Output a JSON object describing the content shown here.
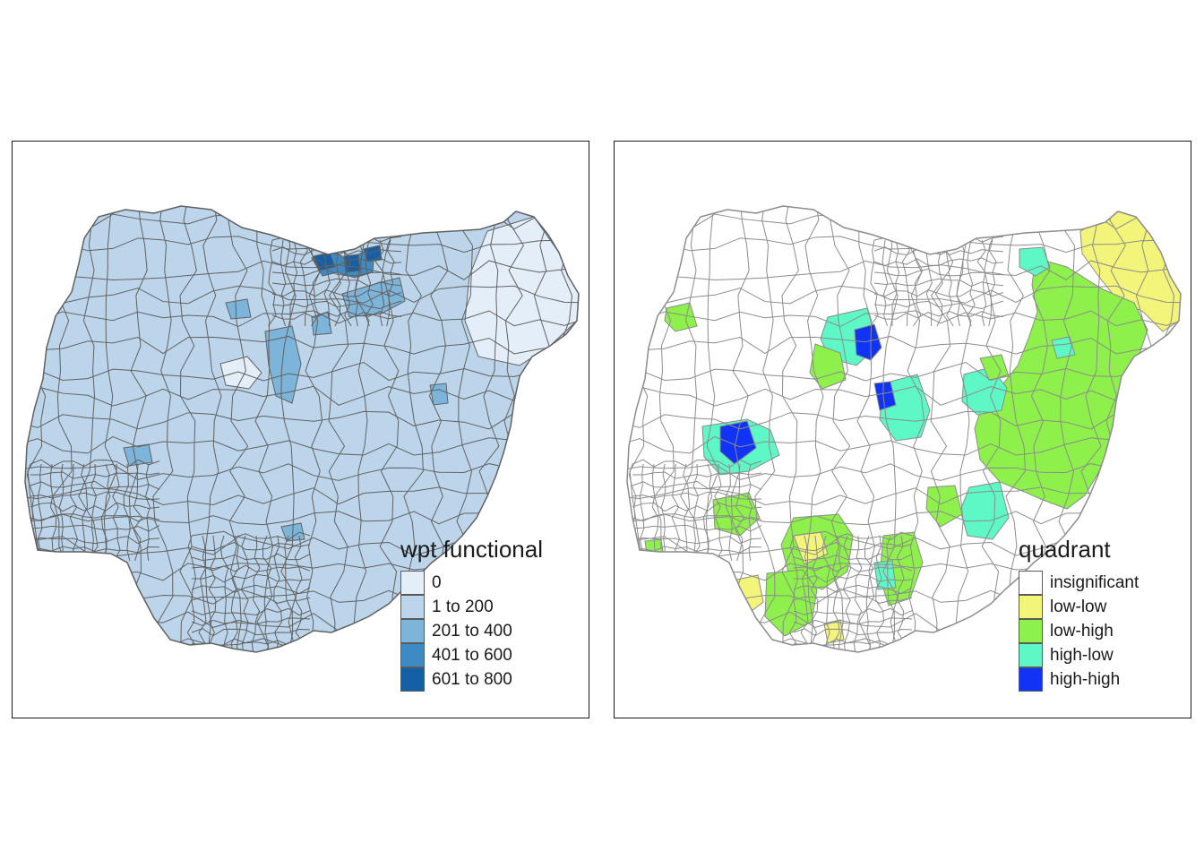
{
  "maps": [
    {
      "legend": {
        "title": "wpt functional",
        "items": [
          {
            "label": "0",
            "color": "#e4eef8"
          },
          {
            "label": "1 to 200",
            "color": "#bcd5ea"
          },
          {
            "label": "201 to 400",
            "color": "#7db4da"
          },
          {
            "label": "401 to 600",
            "color": "#3d8ac4"
          },
          {
            "label": "601 to 800",
            "color": "#155fa6"
          }
        ]
      },
      "border_color": "#616161"
    },
    {
      "legend": {
        "title": "quadrant",
        "items": [
          {
            "label": "insignificant",
            "color": "#ffffff"
          },
          {
            "label": "low-low",
            "color": "#f2f57a"
          },
          {
            "label": "low-high",
            "color": "#8ef04a"
          },
          {
            "label": "high-low",
            "color": "#5ef7c6"
          },
          {
            "label": "high-high",
            "color": "#1033f5"
          }
        ]
      },
      "border_color": "#8c8c8c"
    }
  ]
}
